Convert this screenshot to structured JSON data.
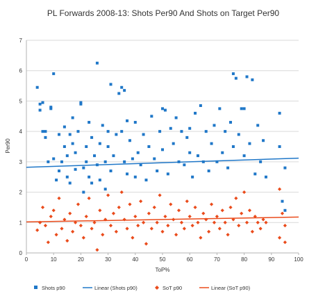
{
  "chart_data": {
    "type": "scatter",
    "title": "PL Forwards 2008-13: Shots Per90 And Shots on Target Per90",
    "xlabel": "ToP%",
    "ylabel": "Per90",
    "xlim": [
      0,
      100
    ],
    "ylim": [
      0,
      7
    ],
    "x_ticks": [
      "0",
      "10",
      "20",
      "30",
      "40",
      "50",
      "60",
      "70",
      "80",
      "90",
      "100"
    ],
    "y_ticks": [
      "0",
      "1",
      "2",
      "3",
      "4",
      "5",
      "6",
      "7"
    ],
    "grid": "horizontal",
    "legend_position": "bottom",
    "series": [
      {
        "name": "Shots p90",
        "color": "#1f77c8",
        "marker": "square",
        "points": [
          [
            4,
            5.45
          ],
          [
            5,
            4.9
          ],
          [
            5,
            4.7
          ],
          [
            6,
            4.95
          ],
          [
            6,
            4.0
          ],
          [
            7,
            3.8
          ],
          [
            7,
            4.0
          ],
          [
            8,
            3.0
          ],
          [
            9,
            4.75
          ],
          [
            9,
            4.8
          ],
          [
            10,
            5.9
          ],
          [
            10,
            3.1
          ],
          [
            11,
            2.4
          ],
          [
            12,
            3.9
          ],
          [
            12,
            2.7
          ],
          [
            13,
            3.0
          ],
          [
            14,
            4.15
          ],
          [
            14,
            3.5
          ],
          [
            15,
            3.2
          ],
          [
            15,
            2.5
          ],
          [
            16,
            3.9
          ],
          [
            16,
            2.3
          ],
          [
            17,
            4.45
          ],
          [
            17,
            3.6
          ],
          [
            18,
            2.75
          ],
          [
            18,
            3.3
          ],
          [
            19,
            4.0
          ],
          [
            20,
            4.95
          ],
          [
            20,
            4.9
          ],
          [
            21,
            2.8
          ],
          [
            21,
            2.0
          ],
          [
            22,
            3.5
          ],
          [
            22,
            3.0
          ],
          [
            23,
            4.3
          ],
          [
            23,
            2.5
          ],
          [
            24,
            3.8
          ],
          [
            24,
            2.3
          ],
          [
            25,
            3.2
          ],
          [
            26,
            6.25
          ],
          [
            26,
            2.9
          ],
          [
            27,
            3.6
          ],
          [
            27,
            2.4
          ],
          [
            28,
            4.2
          ],
          [
            29,
            3.0
          ],
          [
            29,
            2.1
          ],
          [
            30,
            3.5
          ],
          [
            30,
            4.0
          ],
          [
            31,
            5.55
          ],
          [
            31,
            2.7
          ],
          [
            32,
            3.2
          ],
          [
            33,
            3.9
          ],
          [
            34,
            5.25
          ],
          [
            35,
            5.45
          ],
          [
            35,
            4.0
          ],
          [
            36,
            5.35
          ],
          [
            36,
            3.0
          ],
          [
            37,
            4.35
          ],
          [
            37,
            2.6
          ],
          [
            38,
            3.7
          ],
          [
            39,
            3.1
          ],
          [
            40,
            2.5
          ],
          [
            40,
            4.3
          ],
          [
            41,
            3.3
          ],
          [
            42,
            2.9
          ],
          [
            43,
            3.9
          ],
          [
            44,
            2.4
          ],
          [
            45,
            3.5
          ],
          [
            46,
            4.5
          ],
          [
            47,
            3.1
          ],
          [
            48,
            2.7
          ],
          [
            49,
            4.0
          ],
          [
            50,
            4.75
          ],
          [
            50,
            3.4
          ],
          [
            51,
            4.7
          ],
          [
            52,
            2.6
          ],
          [
            53,
            4.1
          ],
          [
            54,
            3.6
          ],
          [
            55,
            4.45
          ],
          [
            56,
            3.0
          ],
          [
            57,
            4.0
          ],
          [
            58,
            2.9
          ],
          [
            59,
            3.8
          ],
          [
            60,
            4.1
          ],
          [
            60,
            3.3
          ],
          [
            61,
            2.5
          ],
          [
            62,
            4.6
          ],
          [
            63,
            3.2
          ],
          [
            64,
            4.85
          ],
          [
            65,
            3.0
          ],
          [
            66,
            4.0
          ],
          [
            67,
            2.7
          ],
          [
            68,
            3.6
          ],
          [
            69,
            4.2
          ],
          [
            70,
            3.0
          ],
          [
            71,
            4.75
          ],
          [
            72,
            3.3
          ],
          [
            73,
            4.0
          ],
          [
            74,
            2.8
          ],
          [
            75,
            4.3
          ],
          [
            76,
            5.9
          ],
          [
            76,
            3.5
          ],
          [
            77,
            5.75
          ],
          [
            78,
            3.9
          ],
          [
            79,
            4.75
          ],
          [
            80,
            4.75
          ],
          [
            80,
            3.2
          ],
          [
            81,
            5.8
          ],
          [
            82,
            3.6
          ],
          [
            83,
            5.7
          ],
          [
            84,
            2.6
          ],
          [
            85,
            4.2
          ],
          [
            86,
            3.0
          ],
          [
            87,
            3.7
          ],
          [
            88,
            2.5
          ],
          [
            93,
            4.6
          ],
          [
            93,
            3.5
          ],
          [
            94,
            1.7
          ],
          [
            95,
            2.8
          ],
          [
            95,
            1.4
          ]
        ]
      },
      {
        "name": "Linear (Shots p90)",
        "color": "#1f77c8",
        "line": [
          [
            0,
            2.82
          ],
          [
            100,
            3.12
          ]
        ]
      },
      {
        "name": "SoT p90",
        "color": "#ea4b1b",
        "marker": "diamond",
        "points": [
          [
            4,
            0.75
          ],
          [
            5,
            1.0
          ],
          [
            6,
            1.5
          ],
          [
            7,
            0.9
          ],
          [
            8,
            0.35
          ],
          [
            9,
            1.2
          ],
          [
            10,
            1.4
          ],
          [
            11,
            0.6
          ],
          [
            12,
            1.8
          ],
          [
            13,
            0.8
          ],
          [
            14,
            1.1
          ],
          [
            15,
            0.4
          ],
          [
            16,
            1.3
          ],
          [
            17,
            0.7
          ],
          [
            18,
            1.0
          ],
          [
            19,
            1.6
          ],
          [
            20,
            0.9
          ],
          [
            21,
            0.5
          ],
          [
            22,
            1.2
          ],
          [
            23,
            1.8
          ],
          [
            24,
            0.8
          ],
          [
            25,
            1.0
          ],
          [
            26,
            0.1
          ],
          [
            27,
            1.4
          ],
          [
            28,
            0.6
          ],
          [
            29,
            1.1
          ],
          [
            30,
            1.9
          ],
          [
            31,
            0.9
          ],
          [
            32,
            1.3
          ],
          [
            33,
            0.7
          ],
          [
            34,
            1.5
          ],
          [
            35,
            2.0
          ],
          [
            36,
            1.1
          ],
          [
            37,
            0.8
          ],
          [
            38,
            1.6
          ],
          [
            39,
            0.5
          ],
          [
            40,
            1.2
          ],
          [
            41,
            0.9
          ],
          [
            42,
            1.7
          ],
          [
            43,
            1.0
          ],
          [
            44,
            0.3
          ],
          [
            45,
            1.3
          ],
          [
            46,
            0.8
          ],
          [
            47,
            1.5
          ],
          [
            48,
            1.0
          ],
          [
            49,
            1.9
          ],
          [
            50,
            0.7
          ],
          [
            51,
            1.2
          ],
          [
            52,
            0.9
          ],
          [
            53,
            1.6
          ],
          [
            54,
            1.1
          ],
          [
            55,
            0.6
          ],
          [
            56,
            1.4
          ],
          [
            57,
            1.0
          ],
          [
            58,
            0.8
          ],
          [
            59,
            1.7
          ],
          [
            60,
            1.2
          ],
          [
            61,
            0.9
          ],
          [
            62,
            1.5
          ],
          [
            63,
            1.0
          ],
          [
            64,
            0.5
          ],
          [
            65,
            1.3
          ],
          [
            66,
            1.1
          ],
          [
            67,
            0.7
          ],
          [
            68,
            1.6
          ],
          [
            69,
            1.0
          ],
          [
            70,
            1.2
          ],
          [
            71,
            0.8
          ],
          [
            72,
            1.4
          ],
          [
            73,
            1.0
          ],
          [
            74,
            0.6
          ],
          [
            75,
            1.5
          ],
          [
            76,
            1.1
          ],
          [
            77,
            1.8
          ],
          [
            78,
            0.9
          ],
          [
            79,
            1.3
          ],
          [
            80,
            2.0
          ],
          [
            81,
            1.0
          ],
          [
            82,
            1.4
          ],
          [
            83,
            0.7
          ],
          [
            84,
            1.2
          ],
          [
            85,
            1.0
          ],
          [
            86,
            0.8
          ],
          [
            87,
            1.1
          ],
          [
            88,
            1.0
          ],
          [
            93,
            2.1
          ],
          [
            93,
            0.5
          ],
          [
            94,
            1.3
          ],
          [
            95,
            0.35
          ],
          [
            95,
            0.9
          ]
        ]
      },
      {
        "name": "Linear (SoT p90)",
        "color": "#ea4b1b",
        "line": [
          [
            0,
            1.02
          ],
          [
            100,
            1.18
          ]
        ]
      }
    ]
  }
}
